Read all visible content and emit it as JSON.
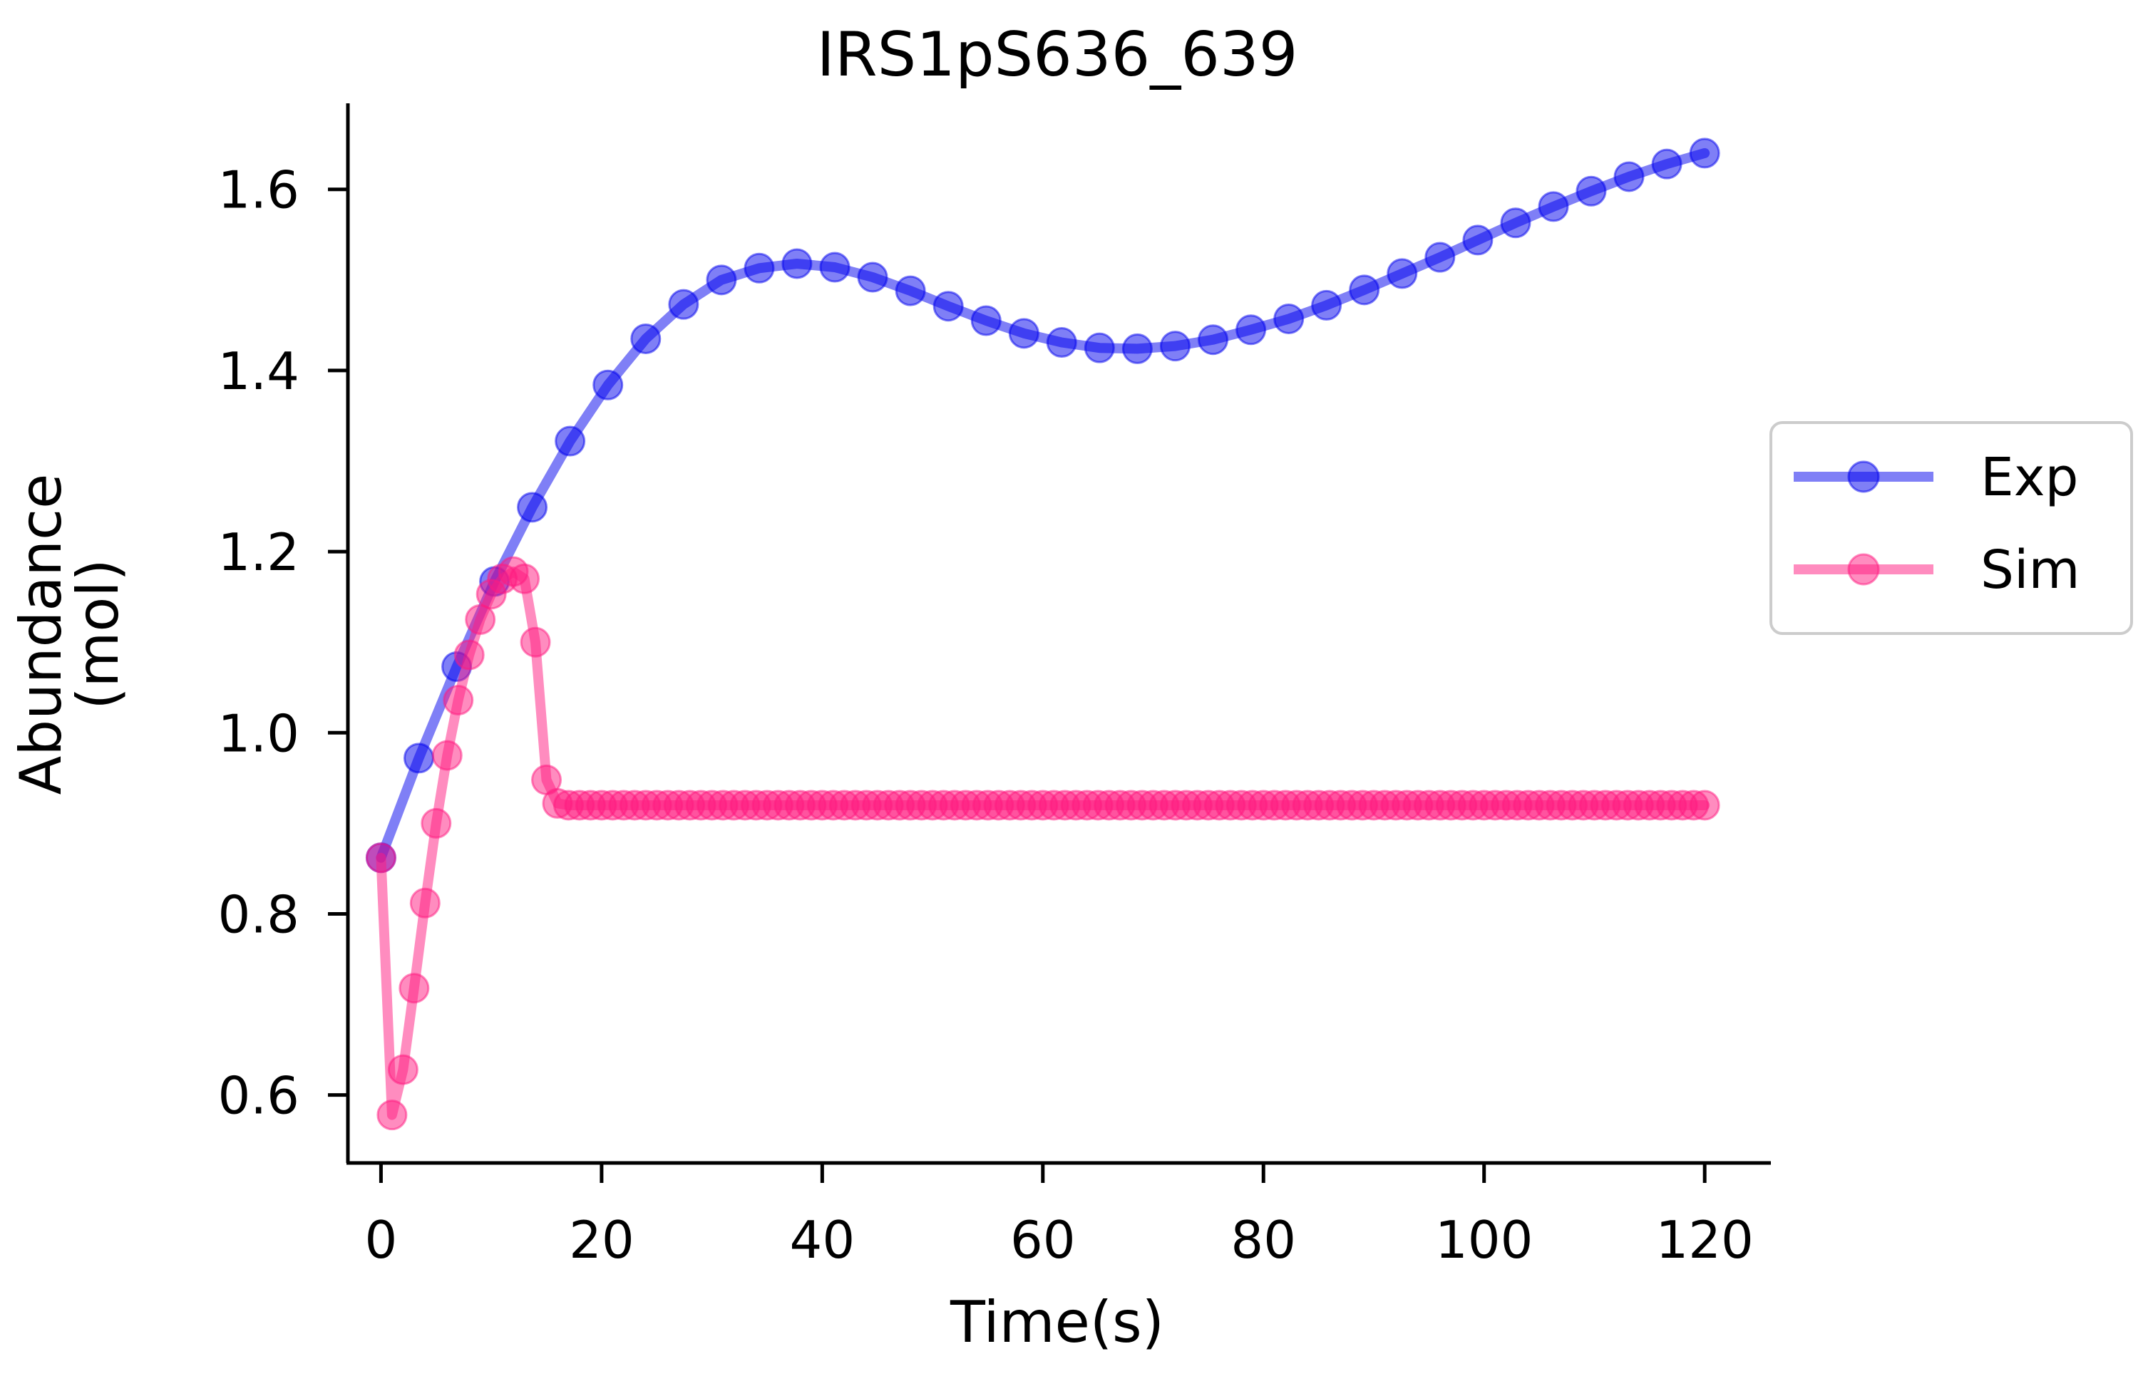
{
  "chart_data": {
    "type": "line",
    "title": "IRS1pS636_639",
    "xlabel": "Time(s)",
    "ylabel_lines": [
      "Abundance",
      "(mol)"
    ],
    "xlim": [
      -3,
      126
    ],
    "ylim": [
      0.525,
      1.695
    ],
    "x_ticks": [
      0,
      20,
      40,
      60,
      80,
      100,
      120
    ],
    "y_ticks": [
      0.6,
      0.8,
      1.0,
      1.2,
      1.4,
      1.6
    ],
    "x_tick_labels": [
      "0",
      "20",
      "40",
      "60",
      "80",
      "100",
      "120"
    ],
    "y_tick_labels": [
      "0.6",
      "0.8",
      "1.0",
      "1.2",
      "1.4",
      "1.6"
    ],
    "grid": false,
    "legend_position": "right",
    "series": [
      {
        "name": "Exp",
        "color": "#0000ee",
        "x": [
          0,
          3.43,
          6.86,
          10.29,
          13.71,
          17.14,
          20.57,
          24,
          27.43,
          30.86,
          34.29,
          37.71,
          41.14,
          44.57,
          48,
          51.43,
          54.86,
          58.29,
          61.71,
          65.14,
          68.57,
          72,
          75.43,
          78.86,
          82.29,
          85.71,
          89.14,
          92.57,
          96,
          99.43,
          102.86,
          106.29,
          109.71,
          113.14,
          116.57,
          120
        ],
        "y": [
          0.862,
          0.972,
          1.073,
          1.167,
          1.249,
          1.322,
          1.384,
          1.435,
          1.473,
          1.5,
          1.513,
          1.518,
          1.514,
          1.503,
          1.488,
          1.471,
          1.455,
          1.441,
          1.431,
          1.425,
          1.424,
          1.427,
          1.434,
          1.445,
          1.457,
          1.472,
          1.489,
          1.507,
          1.525,
          1.544,
          1.563,
          1.581,
          1.598,
          1.614,
          1.628,
          1.64
        ]
      },
      {
        "name": "Sim",
        "color": "#ff1a80",
        "x": [
          0,
          1,
          2,
          3,
          4,
          5,
          6,
          7,
          8,
          9,
          10,
          11,
          12,
          13,
          14,
          15,
          16,
          17,
          18,
          19,
          20,
          21,
          22,
          23,
          24,
          25,
          26,
          27,
          28,
          29,
          30,
          31,
          32,
          33,
          34,
          35,
          36,
          37,
          38,
          39,
          40,
          41,
          42,
          43,
          44,
          45,
          46,
          47,
          48,
          49,
          50,
          51,
          52,
          53,
          54,
          55,
          56,
          57,
          58,
          59,
          60,
          61,
          62,
          63,
          64,
          65,
          66,
          67,
          68,
          69,
          70,
          71,
          72,
          73,
          74,
          75,
          76,
          77,
          78,
          79,
          80,
          81,
          82,
          83,
          84,
          85,
          86,
          87,
          88,
          89,
          90,
          91,
          92,
          93,
          94,
          95,
          96,
          97,
          98,
          99,
          100,
          101,
          102,
          103,
          104,
          105,
          106,
          107,
          108,
          109,
          110,
          111,
          112,
          113,
          114,
          115,
          116,
          117,
          118,
          119,
          120
        ],
        "y": [
          0.862,
          0.578,
          0.628,
          0.718,
          0.812,
          0.9,
          0.975,
          1.036,
          1.086,
          1.125,
          1.153,
          1.17,
          1.178,
          1.17,
          1.1,
          0.948,
          0.922,
          0.92,
          0.92,
          0.92,
          0.92,
          0.92,
          0.92,
          0.92,
          0.92,
          0.92,
          0.92,
          0.92,
          0.92,
          0.92,
          0.92,
          0.92,
          0.92,
          0.92,
          0.92,
          0.92,
          0.92,
          0.92,
          0.92,
          0.92,
          0.92,
          0.92,
          0.92,
          0.92,
          0.92,
          0.92,
          0.92,
          0.92,
          0.92,
          0.92,
          0.92,
          0.92,
          0.92,
          0.92,
          0.92,
          0.92,
          0.92,
          0.92,
          0.92,
          0.92,
          0.92,
          0.92,
          0.92,
          0.92,
          0.92,
          0.92,
          0.92,
          0.92,
          0.92,
          0.92,
          0.92,
          0.92,
          0.92,
          0.92,
          0.92,
          0.92,
          0.92,
          0.92,
          0.92,
          0.92,
          0.92,
          0.92,
          0.92,
          0.92,
          0.92,
          0.92,
          0.92,
          0.92,
          0.92,
          0.92,
          0.92,
          0.92,
          0.92,
          0.92,
          0.92,
          0.92,
          0.92,
          0.92,
          0.92,
          0.92,
          0.92,
          0.92,
          0.92,
          0.92,
          0.92,
          0.92,
          0.92,
          0.92,
          0.92,
          0.92,
          0.92,
          0.92,
          0.92,
          0.92,
          0.92,
          0.92,
          0.92,
          0.92,
          0.92,
          0.92,
          0.92
        ]
      }
    ]
  }
}
